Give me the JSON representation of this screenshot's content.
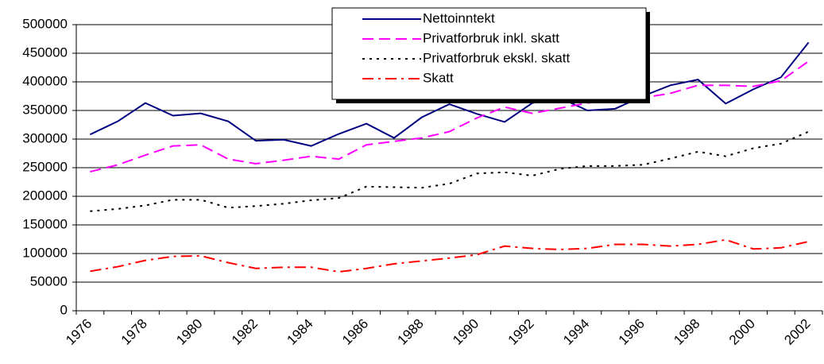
{
  "chart_data": {
    "type": "line",
    "categories": [
      "1976",
      null,
      "1978",
      null,
      "1980",
      null,
      "1982",
      null,
      "1984",
      null,
      "1986",
      null,
      "1988",
      null,
      "1990",
      null,
      "1992",
      null,
      "1994",
      null,
      "1996",
      null,
      "1998",
      null,
      "2000",
      null,
      "2002"
    ],
    "series": [
      {
        "name": "Nettoinntekt",
        "color": "#000080",
        "dash": "solid",
        "values": [
          308000,
          331000,
          363000,
          341000,
          345000,
          331000,
          297000,
          299000,
          288000,
          309000,
          327000,
          302000,
          338000,
          361000,
          344000,
          330000,
          363000,
          372000,
          350000,
          353000,
          375000,
          394000,
          404000,
          362000,
          387000,
          408000,
          469000
        ]
      },
      {
        "name": "Privatforbruk inkl. skatt",
        "color": "#ff00ff",
        "dash": "dashed",
        "values": [
          243000,
          255000,
          272000,
          288000,
          290000,
          265000,
          257000,
          263000,
          270000,
          265000,
          290000,
          296000,
          302000,
          313000,
          337000,
          356000,
          345000,
          354000,
          363000,
          369000,
          372000,
          380000,
          394000,
          394000,
          392000,
          402000,
          436000
        ]
      },
      {
        "name": "Privatforbruk ekskl. skatt",
        "color": "#000000",
        "dash": "dotted",
        "values": [
          174000,
          178000,
          184000,
          194000,
          194000,
          180000,
          183000,
          187000,
          193000,
          197000,
          217000,
          216000,
          215000,
          222000,
          240000,
          242000,
          236000,
          248000,
          253000,
          253000,
          255000,
          266000,
          278000,
          270000,
          284000,
          292000,
          313000
        ]
      },
      {
        "name": "Skatt",
        "color": "#ff0000",
        "dash": "dashdot",
        "values": [
          69000,
          77000,
          88000,
          95000,
          96000,
          84000,
          74000,
          76000,
          76000,
          68000,
          74000,
          82000,
          87000,
          92000,
          98000,
          113000,
          109000,
          107000,
          109000,
          116000,
          116000,
          113000,
          116000,
          124000,
          108000,
          110000,
          121000
        ]
      }
    ],
    "ylim": [
      0,
      500000
    ],
    "yticks": [
      0,
      50000,
      100000,
      150000,
      200000,
      250000,
      300000,
      350000,
      400000,
      450000,
      500000
    ],
    "grid": true,
    "legend": "top"
  }
}
